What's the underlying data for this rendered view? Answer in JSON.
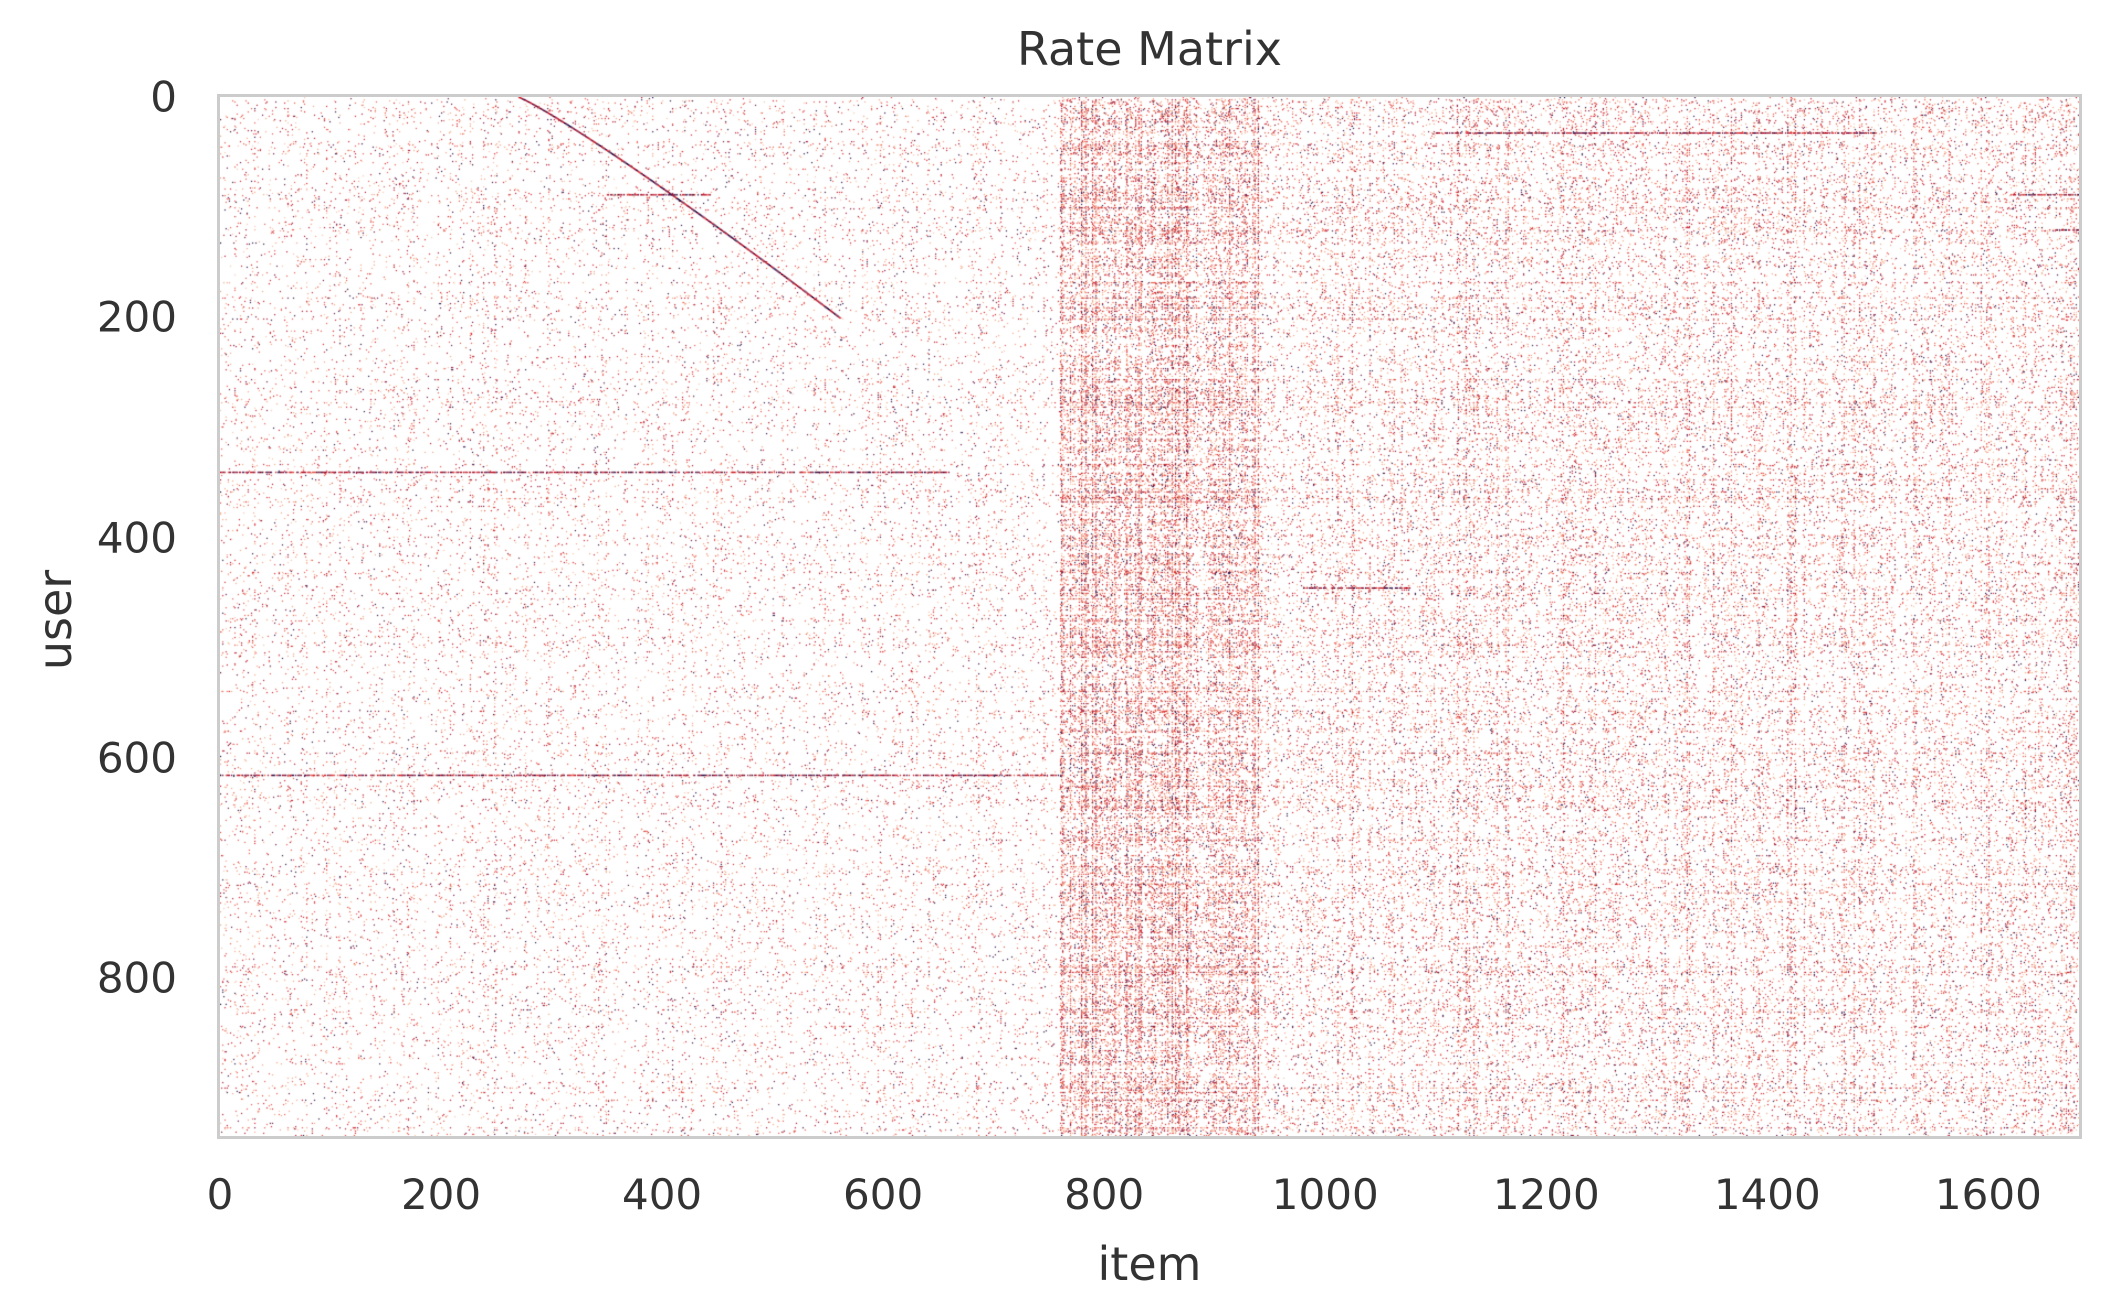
{
  "chart_data": {
    "type": "heatmap",
    "title": "Rate Matrix",
    "xlabel": "item",
    "ylabel": "user",
    "xlim": [
      0,
      1682
    ],
    "ylim": [
      943,
      0
    ],
    "y_inverted": true,
    "x_ticks": [
      "0",
      "200",
      "400",
      "600",
      "800",
      "1000",
      "1200",
      "1400",
      "1600"
    ],
    "x_tick_values": [
      0,
      200,
      400,
      600,
      800,
      1000,
      1200,
      1400,
      1600
    ],
    "y_ticks": [
      "0",
      "200",
      "400",
      "600",
      "800"
    ],
    "y_tick_values": [
      0,
      200,
      400,
      600,
      800
    ],
    "grid": false,
    "colormap": {
      "low": "#f4a582",
      "mid": "#d6202a",
      "high": "#2b1246"
    },
    "sparse_regions": [
      {
        "x_range": [
          0,
          760
        ],
        "density": 0.035
      },
      {
        "x_range": [
          760,
          940
        ],
        "density": 0.2
      },
      {
        "x_range": [
          940,
          1682
        ],
        "density": 0.085
      }
    ],
    "dense_rows": [
      {
        "user": 88,
        "x_range": [
          350,
          445
        ],
        "rating": 5
      },
      {
        "user": 340,
        "x_range": [
          0,
          660
        ],
        "rating": 4
      },
      {
        "user": 615,
        "x_range": [
          0,
          760
        ],
        "rating": 3
      },
      {
        "user": 32,
        "x_range": [
          1100,
          1500
        ],
        "rating": 5
      },
      {
        "user": 88,
        "x_range": [
          1620,
          1682
        ],
        "rating": 3
      },
      {
        "user": 120,
        "x_range": [
          1660,
          1682
        ],
        "rating": 4
      },
      {
        "user": 445,
        "x_range": [
          980,
          1080
        ],
        "rating": 4
      }
    ],
    "diagonal_band": {
      "x_start": 270,
      "y_start": 0,
      "x_end": 560,
      "y_end": 200
    }
  }
}
